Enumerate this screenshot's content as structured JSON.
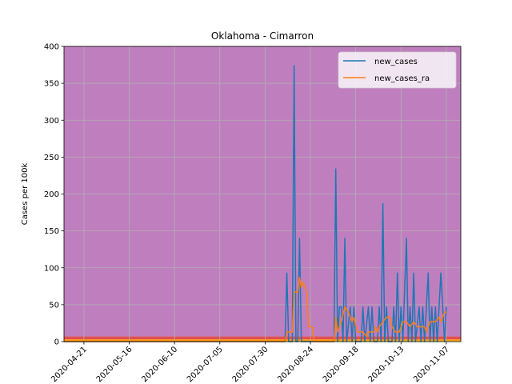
{
  "chart_data": {
    "type": "line",
    "title": "Oklahoma - Cimarron",
    "xlabel": "",
    "ylabel": "Cases per 100k",
    "ylim": [
      0,
      400
    ],
    "yticks": [
      0,
      50,
      100,
      150,
      200,
      250,
      300,
      350,
      400
    ],
    "xlim": [
      "2020-04-10",
      "2020-11-15"
    ],
    "xticks": [
      "2020-04-21",
      "2020-05-16",
      "2020-06-10",
      "2020-07-05",
      "2020-07-30",
      "2020-08-24",
      "2020-09-18",
      "2020-10-13",
      "2020-11-07"
    ],
    "grid": true,
    "legend_position": "top-right",
    "background_bands": [
      {
        "from": 0,
        "to": 1,
        "color": "#ffd400"
      },
      {
        "from": 1,
        "to": 3,
        "color": "#ff9900"
      },
      {
        "from": 3,
        "to": 7,
        "color": "#e05050"
      },
      {
        "from": 7,
        "to": 400,
        "color": "#bf7fbf"
      }
    ],
    "series": [
      {
        "name": "new_cases",
        "color": "#1f77b4",
        "points": [
          [
            "2020-04-10",
            0
          ],
          [
            "2020-08-10",
            0
          ],
          [
            "2020-08-11",
            93
          ],
          [
            "2020-08-12",
            0
          ],
          [
            "2020-08-14",
            0
          ],
          [
            "2020-08-15",
            374
          ],
          [
            "2020-08-16",
            0
          ],
          [
            "2020-08-17",
            0
          ],
          [
            "2020-08-18",
            140
          ],
          [
            "2020-08-19",
            0
          ],
          [
            "2020-09-06",
            0
          ],
          [
            "2020-09-07",
            234
          ],
          [
            "2020-09-08",
            0
          ],
          [
            "2020-09-09",
            47
          ],
          [
            "2020-09-10",
            47
          ],
          [
            "2020-09-11",
            0
          ],
          [
            "2020-09-12",
            140
          ],
          [
            "2020-09-13",
            0
          ],
          [
            "2020-09-15",
            47
          ],
          [
            "2020-09-16",
            0
          ],
          [
            "2020-09-17",
            47
          ],
          [
            "2020-09-18",
            0
          ],
          [
            "2020-09-21",
            0
          ],
          [
            "2020-09-22",
            47
          ],
          [
            "2020-09-23",
            0
          ],
          [
            "2020-09-25",
            47
          ],
          [
            "2020-09-26",
            0
          ],
          [
            "2020-09-27",
            47
          ],
          [
            "2020-09-28",
            0
          ],
          [
            "2020-09-30",
            0
          ],
          [
            "2020-10-01",
            47
          ],
          [
            "2020-10-02",
            0
          ],
          [
            "2020-10-03",
            187
          ],
          [
            "2020-10-04",
            0
          ],
          [
            "2020-10-05",
            47
          ],
          [
            "2020-10-06",
            0
          ],
          [
            "2020-10-08",
            0
          ],
          [
            "2020-10-09",
            47
          ],
          [
            "2020-10-10",
            0
          ],
          [
            "2020-10-11",
            93
          ],
          [
            "2020-10-12",
            0
          ],
          [
            "2020-10-13",
            47
          ],
          [
            "2020-10-14",
            0
          ],
          [
            "2020-10-16",
            140
          ],
          [
            "2020-10-17",
            0
          ],
          [
            "2020-10-18",
            47
          ],
          [
            "2020-10-19",
            0
          ],
          [
            "2020-10-20",
            93
          ],
          [
            "2020-10-21",
            0
          ],
          [
            "2020-10-23",
            47
          ],
          [
            "2020-10-24",
            0
          ],
          [
            "2020-10-25",
            47
          ],
          [
            "2020-10-26",
            0
          ],
          [
            "2020-10-28",
            93
          ],
          [
            "2020-10-29",
            0
          ],
          [
            "2020-10-30",
            47
          ],
          [
            "2020-10-31",
            0
          ],
          [
            "2020-11-01",
            47
          ],
          [
            "2020-11-02",
            0
          ],
          [
            "2020-11-04",
            93
          ],
          [
            "2020-11-05",
            47
          ],
          [
            "2020-11-06",
            0
          ],
          [
            "2020-11-07",
            47
          ]
        ]
      },
      {
        "name": "new_cases_ra",
        "color": "#ff7f0e",
        "points": [
          [
            "2020-04-10",
            0
          ],
          [
            "2020-08-10",
            0
          ],
          [
            "2020-08-11",
            13
          ],
          [
            "2020-08-14",
            13
          ],
          [
            "2020-08-15",
            67
          ],
          [
            "2020-08-17",
            67
          ],
          [
            "2020-08-18",
            87
          ],
          [
            "2020-08-19",
            73
          ],
          [
            "2020-08-20",
            80
          ],
          [
            "2020-08-22",
            67
          ],
          [
            "2020-08-23",
            20
          ],
          [
            "2020-08-25",
            20
          ],
          [
            "2020-08-26",
            0
          ],
          [
            "2020-09-06",
            0
          ],
          [
            "2020-09-07",
            33
          ],
          [
            "2020-09-08",
            13
          ],
          [
            "2020-09-10",
            27
          ],
          [
            "2020-09-12",
            47
          ],
          [
            "2020-09-14",
            40
          ],
          [
            "2020-09-16",
            27
          ],
          [
            "2020-09-17",
            33
          ],
          [
            "2020-09-19",
            13
          ],
          [
            "2020-09-22",
            13
          ],
          [
            "2020-09-24",
            7
          ],
          [
            "2020-09-25",
            13
          ],
          [
            "2020-09-28",
            13
          ],
          [
            "2020-09-29",
            20
          ],
          [
            "2020-09-30",
            13
          ],
          [
            "2020-10-01",
            20
          ],
          [
            "2020-10-03",
            27
          ],
          [
            "2020-10-05",
            33
          ],
          [
            "2020-10-07",
            33
          ],
          [
            "2020-10-08",
            20
          ],
          [
            "2020-10-10",
            13
          ],
          [
            "2020-10-12",
            13
          ],
          [
            "2020-10-14",
            27
          ],
          [
            "2020-10-16",
            27
          ],
          [
            "2020-10-18",
            20
          ],
          [
            "2020-10-20",
            27
          ],
          [
            "2020-10-22",
            20
          ],
          [
            "2020-10-24",
            20
          ],
          [
            "2020-10-26",
            20
          ],
          [
            "2020-10-27",
            13
          ],
          [
            "2020-10-29",
            27
          ],
          [
            "2020-11-01",
            27
          ],
          [
            "2020-11-03",
            33
          ],
          [
            "2020-11-04",
            27
          ],
          [
            "2020-11-06",
            40
          ],
          [
            "2020-11-07",
            40
          ]
        ]
      }
    ]
  }
}
